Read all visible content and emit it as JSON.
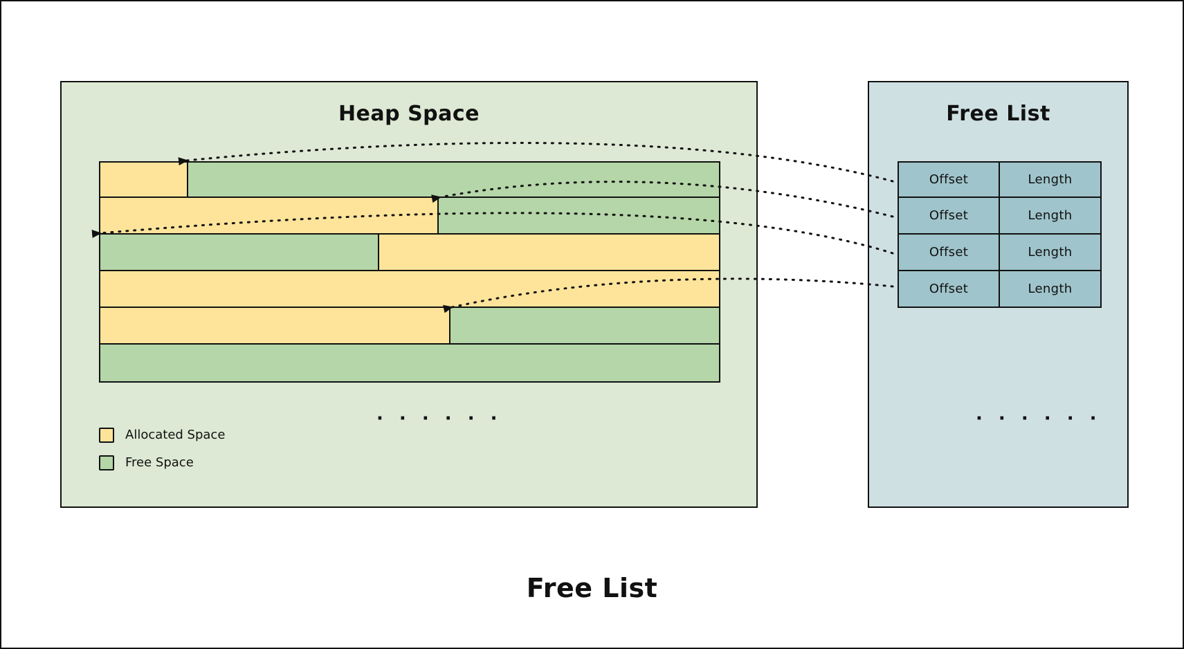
{
  "heap": {
    "title": "Heap Space",
    "ellipsis": "· · · · · ·",
    "legend": {
      "allocated_label": "Allocated Space",
      "free_label": "Free Space"
    }
  },
  "free_list": {
    "title": "Free List",
    "ellipsis": "· · · · · ·",
    "rows": [
      {
        "offset": "Offset",
        "length": "Length"
      },
      {
        "offset": "Offset",
        "length": "Length"
      },
      {
        "offset": "Offset",
        "length": "Length"
      },
      {
        "offset": "Offset",
        "length": "Length"
      }
    ]
  },
  "caption": "Free List",
  "colors": {
    "allocated": "#fde49a",
    "free": "#b5d6a8",
    "heap_bg": "#dde9d4",
    "freelist_bg": "#cfe0e3",
    "entry": "#9fc4cb"
  }
}
